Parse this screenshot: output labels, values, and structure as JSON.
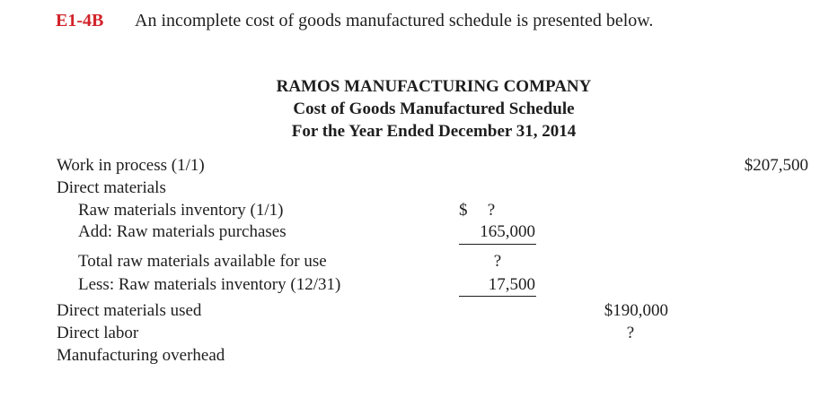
{
  "exercise": {
    "code": "E1-4B",
    "text": "An incomplete cost of goods manufactured schedule is presented below."
  },
  "header": {
    "company": "RAMOS MANUFACTURING COMPANY",
    "schedule": "Cost of Goods Manufactured Schedule",
    "period": "For the Year Ended December 31, 2014"
  },
  "schedule": {
    "wip_label": "Work in process (1/1)",
    "wip_amount": "$207,500",
    "dm_label": "Direct materials",
    "rm_begin_label": "Raw materials inventory (1/1)",
    "rm_begin_dollar": "$",
    "rm_begin_amount": "?",
    "purchases_label": "Add: Raw materials purchases",
    "purchases_amount": "165,000",
    "total_available_label": "Total raw materials available for use",
    "total_available_amount": "?",
    "rm_end_label": "Less: Raw materials inventory (12/31)",
    "rm_end_amount": "17,500",
    "dm_used_label": "Direct materials used",
    "dm_used_amount": "$190,000",
    "dl_label": "Direct labor",
    "dl_amount": "?",
    "moh_label": "Manufacturing overhead"
  }
}
